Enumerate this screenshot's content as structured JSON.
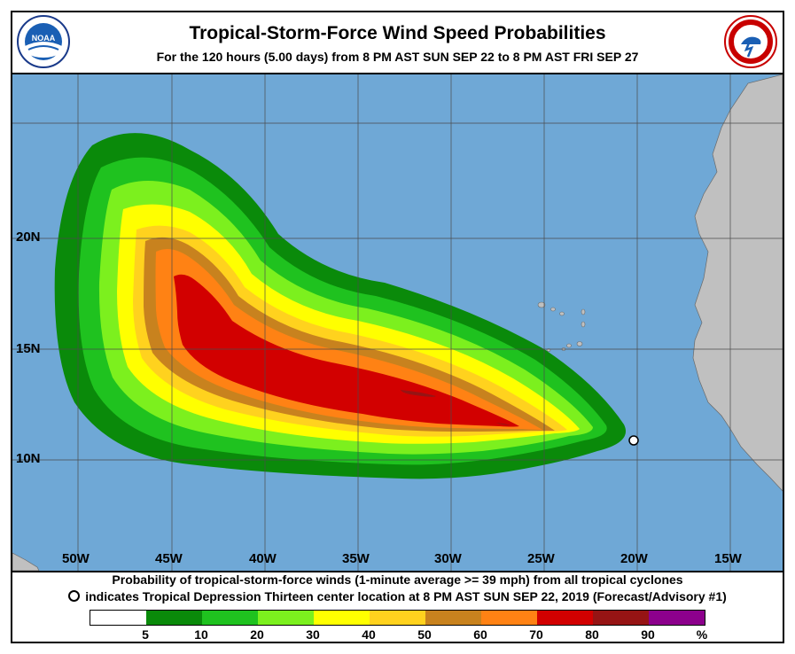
{
  "header": {
    "title": "Tropical-Storm-Force Wind Speed Probabilities",
    "subtitle": "For the 120 hours (5.00 days) from 8 PM AST SUN SEP 22 to 8 PM AST FRI SEP 27"
  },
  "logos": {
    "left_text": "NOAA",
    "right_text": "NATIONAL WEATHER SERVICE"
  },
  "map": {
    "latitude_labels": [
      "20N",
      "15N",
      "10N"
    ],
    "longitude_labels": [
      "50W",
      "45W",
      "40W",
      "35W",
      "30W",
      "25W",
      "20W",
      "15W"
    ],
    "center_marker": {
      "lat": 10.8,
      "lon": -20.2
    }
  },
  "footer": {
    "line1": "Probability of tropical-storm-force winds (1-minute average >= 39 mph) from all tropical cyclones",
    "line2": "indicates Tropical Depression Thirteen center location at 8 PM AST SUN SEP 22, 2019 (Forecast/Advisory #1)"
  },
  "legend": {
    "ticks": [
      "5",
      "10",
      "20",
      "30",
      "40",
      "50",
      "60",
      "70",
      "80",
      "90",
      "%"
    ],
    "colors": [
      "#ffffff",
      "#0a8a0a",
      "#1fc21f",
      "#7cf01e",
      "#ffff00",
      "#ffd21e",
      "#c8821e",
      "#ff8214",
      "#d20000",
      "#961414",
      "#8c008c"
    ]
  },
  "colors": {
    "ocean": "#6fa8d6",
    "land": "#c0c0c0"
  }
}
